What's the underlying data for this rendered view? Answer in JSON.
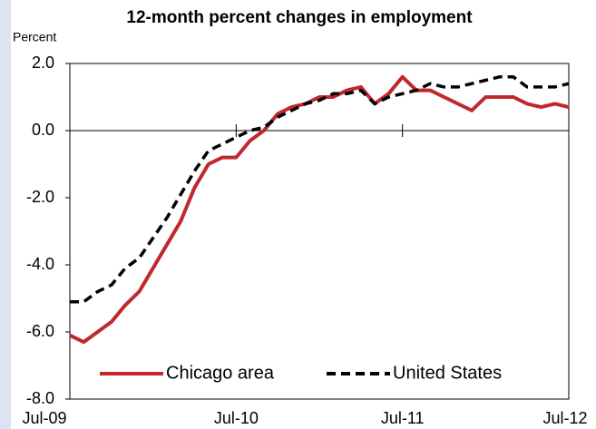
{
  "chart_data": {
    "type": "line",
    "title": "12-month percent changes in employment",
    "y_label": "Percent",
    "categories": [
      "Jul-09",
      null,
      null,
      null,
      null,
      null,
      null,
      null,
      null,
      null,
      null,
      null,
      "Jul-10",
      null,
      null,
      null,
      null,
      null,
      null,
      null,
      null,
      null,
      null,
      null,
      "Jul-11",
      null,
      null,
      null,
      null,
      null,
      null,
      null,
      null,
      null,
      null,
      null,
      "Jul-12"
    ],
    "series": [
      {
        "name": "Chicago area",
        "color": "#c0282d",
        "dash": false,
        "values": [
          -6.1,
          -6.3,
          -6.0,
          -5.7,
          -5.2,
          -4.8,
          -4.1,
          -3.4,
          -2.7,
          -1.7,
          -1.0,
          -0.8,
          -0.8,
          -0.3,
          0.0,
          0.5,
          0.7,
          0.8,
          1.0,
          1.0,
          1.2,
          1.3,
          0.8,
          1.1,
          1.6,
          1.2,
          1.2,
          1.0,
          0.8,
          0.6,
          1.0,
          1.0,
          1.0,
          0.8,
          0.7,
          0.8,
          0.7
        ]
      },
      {
        "name": "United States",
        "color": "#000000",
        "dash": true,
        "values": [
          -5.1,
          -5.1,
          -4.8,
          -4.6,
          -4.1,
          -3.8,
          -3.2,
          -2.6,
          -1.9,
          -1.2,
          -0.6,
          -0.4,
          -0.2,
          0.0,
          0.1,
          0.4,
          0.6,
          0.8,
          0.9,
          1.1,
          1.1,
          1.2,
          0.8,
          1.0,
          1.1,
          1.2,
          1.4,
          1.3,
          1.3,
          1.4,
          1.5,
          1.6,
          1.6,
          1.3,
          1.3,
          1.3,
          1.4
        ]
      }
    ],
    "ylim": [
      -8,
      2
    ],
    "yticks": [
      {
        "value": -8,
        "label": "-8.0"
      },
      {
        "value": -6,
        "label": "-6.0"
      },
      {
        "value": -4,
        "label": "-4.0"
      },
      {
        "value": -2,
        "label": "-2.0"
      },
      {
        "value": 0,
        "label": "0.0"
      },
      {
        "value": 2,
        "label": "2.0"
      }
    ],
    "grid": false,
    "legend": "bottom"
  }
}
